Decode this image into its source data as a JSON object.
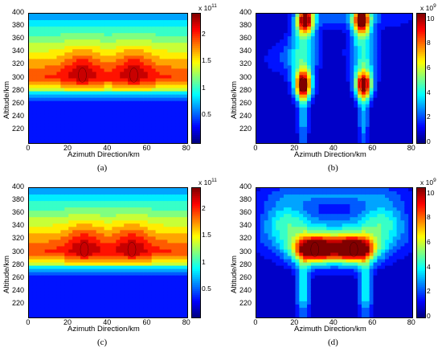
{
  "chart_data": [
    {
      "id": "a",
      "type": "heatmap",
      "caption": "(a)",
      "xlabel": "Azimuth Direction/km",
      "ylabel": "Altitude/km",
      "xlim": [
        0,
        80
      ],
      "ylim": [
        200,
        400
      ],
      "xticks": [
        0,
        20,
        40,
        60,
        80
      ],
      "yticks": [
        220,
        240,
        260,
        280,
        300,
        320,
        340,
        360,
        380,
        400
      ],
      "colorbar": {
        "multiplier_base": "x 10",
        "multiplier_exp": "11",
        "ticks": [
          0.5,
          1,
          1.5,
          2
        ],
        "tick_labels": [
          "0.5",
          "1",
          "1.5",
          "2"
        ],
        "range": [
          0,
          2.4
        ]
      },
      "peaks": [
        {
          "x": 27,
          "y": 305,
          "value": 2.35
        },
        {
          "x": 53,
          "y": 305,
          "value": 2.35
        }
      ]
    },
    {
      "id": "b",
      "type": "heatmap",
      "caption": "(b)",
      "xlabel": "Azimuth Direction/km",
      "ylabel": "Altitude/km",
      "xlim": [
        0,
        80
      ],
      "ylim": [
        200,
        400
      ],
      "xticks": [
        0,
        20,
        40,
        60,
        80
      ],
      "yticks": [
        220,
        240,
        260,
        280,
        300,
        320,
        340,
        360,
        380,
        400
      ],
      "colorbar": {
        "multiplier_base": "x 10",
        "multiplier_exp": "9",
        "ticks": [
          0,
          2,
          4,
          6,
          8,
          10
        ],
        "tick_labels": [
          "0",
          "2",
          "4",
          "6",
          "8",
          "10"
        ],
        "range": [
          0,
          10.5
        ]
      },
      "peaks": [
        {
          "x": 24,
          "y": 290,
          "value": 9.5
        },
        {
          "x": 55,
          "y": 290,
          "value": 9.0
        },
        {
          "x": 25,
          "y": 390,
          "value": 9.5
        },
        {
          "x": 54,
          "y": 390,
          "value": 9.5
        }
      ]
    },
    {
      "id": "c",
      "type": "heatmap",
      "caption": "(c)",
      "xlabel": "Azimuth Direction/km",
      "ylabel": "Altitude/km",
      "xlim": [
        0,
        80
      ],
      "ylim": [
        200,
        400
      ],
      "xticks": [
        0,
        20,
        40,
        60,
        80
      ],
      "yticks": [
        220,
        240,
        260,
        280,
        300,
        320,
        340,
        360,
        380,
        400
      ],
      "colorbar": {
        "multiplier_base": "x 10",
        "multiplier_exp": "11",
        "ticks": [
          0.5,
          1,
          1.5,
          2
        ],
        "tick_labels": [
          "0.5",
          "1",
          "1.5",
          "2"
        ],
        "range": [
          0,
          2.4
        ]
      },
      "peaks": [
        {
          "x": 28,
          "y": 305,
          "value": 2.35
        },
        {
          "x": 52,
          "y": 305,
          "value": 2.35
        }
      ]
    },
    {
      "id": "d",
      "type": "heatmap",
      "caption": "(d)",
      "xlabel": "Azimuth Direction/km",
      "ylabel": "Altitude/km",
      "xlim": [
        0,
        80
      ],
      "ylim": [
        200,
        400
      ],
      "xticks": [
        0,
        20,
        40,
        60,
        80
      ],
      "yticks": [
        220,
        240,
        260,
        280,
        300,
        320,
        340,
        360,
        380,
        400
      ],
      "colorbar": {
        "multiplier_base": "x 10",
        "multiplier_exp": "9",
        "ticks": [
          0,
          2,
          4,
          6,
          8,
          10
        ],
        "tick_labels": [
          "0",
          "2",
          "4",
          "6",
          "8",
          "10"
        ],
        "range": [
          0,
          10.5
        ]
      },
      "peaks": [
        {
          "x": 30,
          "y": 305,
          "value": 10
        },
        {
          "x": 50,
          "y": 305,
          "value": 10
        }
      ]
    }
  ]
}
